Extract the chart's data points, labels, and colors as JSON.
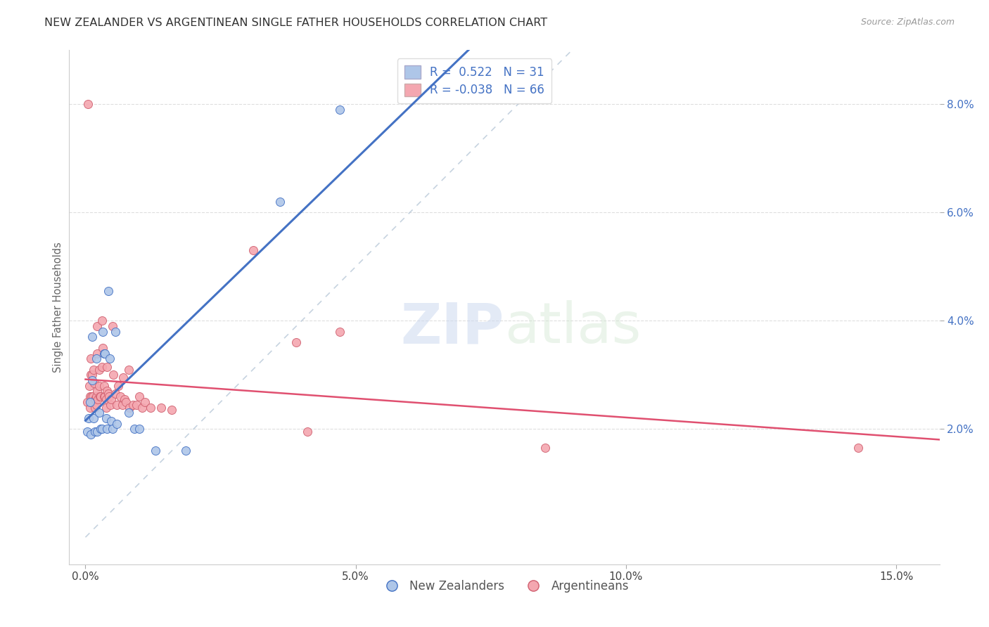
{
  "title": "NEW ZEALANDER VS ARGENTINEAN SINGLE FATHER HOUSEHOLDS CORRELATION CHART",
  "source": "Source: ZipAtlas.com",
  "xlabel_ticks": [
    0.0,
    0.05,
    0.1,
    0.15
  ],
  "xlabel_labels": [
    "0.0%",
    "5.0%",
    "10.0%",
    "15.0%"
  ],
  "ylabel_ticks": [
    0.02,
    0.04,
    0.06,
    0.08
  ],
  "ylabel_labels": [
    "2.0%",
    "4.0%",
    "6.0%",
    "8.0%"
  ],
  "xmin": -0.003,
  "xmax": 0.158,
  "ymin": -0.005,
  "ymax": 0.09,
  "ylabel": "Single Father Households",
  "r_nz": 0.522,
  "n_nz": 31,
  "r_arg": -0.038,
  "n_arg": 66,
  "color_nz": "#aec6e8",
  "color_arg": "#f4a7b0",
  "color_nz_line": "#4472c4",
  "color_arg_line": "#e05070",
  "color_diag_line": "#b8c8d8",
  "watermark_zip": "ZIP",
  "watermark_atlas": "atlas",
  "nz_points": [
    [
      0.0003,
      0.0195
    ],
    [
      0.0006,
      0.022
    ],
    [
      0.0008,
      0.025
    ],
    [
      0.001,
      0.019
    ],
    [
      0.0012,
      0.037
    ],
    [
      0.0013,
      0.029
    ],
    [
      0.0015,
      0.022
    ],
    [
      0.0018,
      0.0195
    ],
    [
      0.002,
      0.033
    ],
    [
      0.0022,
      0.0195
    ],
    [
      0.0025,
      0.023
    ],
    [
      0.0028,
      0.02
    ],
    [
      0.003,
      0.02
    ],
    [
      0.0032,
      0.038
    ],
    [
      0.0034,
      0.034
    ],
    [
      0.0036,
      0.034
    ],
    [
      0.0038,
      0.022
    ],
    [
      0.004,
      0.02
    ],
    [
      0.0042,
      0.0455
    ],
    [
      0.0045,
      0.033
    ],
    [
      0.0048,
      0.0215
    ],
    [
      0.005,
      0.02
    ],
    [
      0.0055,
      0.038
    ],
    [
      0.0058,
      0.021
    ],
    [
      0.008,
      0.023
    ],
    [
      0.009,
      0.02
    ],
    [
      0.01,
      0.02
    ],
    [
      0.013,
      0.016
    ],
    [
      0.0185,
      0.016
    ],
    [
      0.036,
      0.062
    ],
    [
      0.047,
      0.079
    ]
  ],
  "arg_points": [
    [
      0.0003,
      0.025
    ],
    [
      0.0005,
      0.08
    ],
    [
      0.0007,
      0.028
    ],
    [
      0.0008,
      0.026
    ],
    [
      0.0009,
      0.024
    ],
    [
      0.001,
      0.033
    ],
    [
      0.001,
      0.03
    ],
    [
      0.0011,
      0.026
    ],
    [
      0.0012,
      0.025
    ],
    [
      0.0013,
      0.03
    ],
    [
      0.0014,
      0.026
    ],
    [
      0.0015,
      0.031
    ],
    [
      0.0016,
      0.0285
    ],
    [
      0.0017,
      0.0255
    ],
    [
      0.0018,
      0.024
    ],
    [
      0.0019,
      0.0255
    ],
    [
      0.002,
      0.026
    ],
    [
      0.002,
      0.0245
    ],
    [
      0.0022,
      0.039
    ],
    [
      0.0022,
      0.034
    ],
    [
      0.0022,
      0.027
    ],
    [
      0.0023,
      0.0255
    ],
    [
      0.0025,
      0.031
    ],
    [
      0.0026,
      0.028
    ],
    [
      0.0027,
      0.026
    ],
    [
      0.0028,
      0.026
    ],
    [
      0.003,
      0.04
    ],
    [
      0.003,
      0.0315
    ],
    [
      0.0032,
      0.035
    ],
    [
      0.0034,
      0.028
    ],
    [
      0.0035,
      0.026
    ],
    [
      0.0036,
      0.026
    ],
    [
      0.0038,
      0.0255
    ],
    [
      0.0038,
      0.024
    ],
    [
      0.004,
      0.0315
    ],
    [
      0.004,
      0.027
    ],
    [
      0.0042,
      0.0265
    ],
    [
      0.0044,
      0.026
    ],
    [
      0.0046,
      0.0245
    ],
    [
      0.0048,
      0.0255
    ],
    [
      0.005,
      0.039
    ],
    [
      0.0052,
      0.03
    ],
    [
      0.0055,
      0.0265
    ],
    [
      0.0058,
      0.0245
    ],
    [
      0.006,
      0.028
    ],
    [
      0.0065,
      0.026
    ],
    [
      0.0068,
      0.0245
    ],
    [
      0.007,
      0.0295
    ],
    [
      0.0072,
      0.0255
    ],
    [
      0.0075,
      0.025
    ],
    [
      0.008,
      0.031
    ],
    [
      0.0082,
      0.024
    ],
    [
      0.0088,
      0.0245
    ],
    [
      0.0095,
      0.0245
    ],
    [
      0.01,
      0.026
    ],
    [
      0.0105,
      0.024
    ],
    [
      0.011,
      0.025
    ],
    [
      0.012,
      0.024
    ],
    [
      0.014,
      0.024
    ],
    [
      0.016,
      0.0235
    ],
    [
      0.031,
      0.053
    ],
    [
      0.039,
      0.036
    ],
    [
      0.041,
      0.0195
    ],
    [
      0.047,
      0.038
    ],
    [
      0.085,
      0.0165
    ],
    [
      0.143,
      0.0165
    ]
  ]
}
